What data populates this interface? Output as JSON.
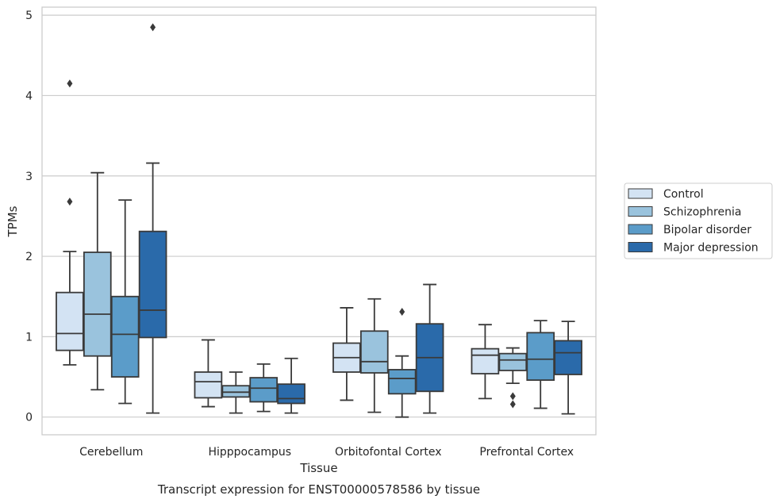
{
  "caption": "Transcript expression for ENST00000578586 by tissue",
  "chart_data": {
    "type": "box",
    "xlabel": "Tissue",
    "ylabel": "TPMs",
    "ylim": [
      -0.22,
      5.1
    ],
    "yticks": [
      "0",
      "1",
      "2",
      "3",
      "4",
      "5"
    ],
    "grid": "horizontal",
    "legend_position": "right",
    "categories": [
      "Cerebellum",
      "Hipppocampus",
      "Orbitofontal Cortex",
      "Prefrontal Cortex"
    ],
    "series": [
      {
        "name": "Control",
        "color": "#d3e3f3",
        "boxes": [
          {
            "low": 0.65,
            "q1": 0.83,
            "median": 1.04,
            "q3": 1.55,
            "high": 2.06,
            "outliers": [
              2.68,
              4.15
            ]
          },
          {
            "low": 0.13,
            "q1": 0.24,
            "median": 0.44,
            "q3": 0.56,
            "high": 0.96,
            "outliers": []
          },
          {
            "low": 0.21,
            "q1": 0.56,
            "median": 0.74,
            "q3": 0.92,
            "high": 1.36,
            "outliers": []
          },
          {
            "low": 0.23,
            "q1": 0.54,
            "median": 0.77,
            "q3": 0.85,
            "high": 1.15,
            "outliers": []
          }
        ]
      },
      {
        "name": "Schizophrenia",
        "color": "#9ac3dd",
        "boxes": [
          {
            "low": 0.34,
            "q1": 0.76,
            "median": 1.28,
            "q3": 2.05,
            "high": 3.04,
            "outliers": []
          },
          {
            "low": 0.05,
            "q1": 0.25,
            "median": 0.31,
            "q3": 0.39,
            "high": 0.56,
            "outliers": []
          },
          {
            "low": 0.06,
            "q1": 0.55,
            "median": 0.69,
            "q3": 1.07,
            "high": 1.47,
            "outliers": []
          },
          {
            "low": 0.42,
            "q1": 0.58,
            "median": 0.71,
            "q3": 0.79,
            "high": 0.86,
            "outliers": [
              0.26,
              0.16
            ]
          }
        ]
      },
      {
        "name": "Bipolar disorder",
        "color": "#5b9cc9",
        "boxes": [
          {
            "low": 0.17,
            "q1": 0.5,
            "median": 1.03,
            "q3": 1.5,
            "high": 2.7,
            "outliers": []
          },
          {
            "low": 0.07,
            "q1": 0.19,
            "median": 0.36,
            "q3": 0.49,
            "high": 0.66,
            "outliers": []
          },
          {
            "low": 0.0,
            "q1": 0.29,
            "median": 0.48,
            "q3": 0.59,
            "high": 0.76,
            "outliers": [
              1.31
            ]
          },
          {
            "low": 0.11,
            "q1": 0.46,
            "median": 0.72,
            "q3": 1.05,
            "high": 1.2,
            "outliers": []
          }
        ]
      },
      {
        "name": "Major depression",
        "color": "#2a6aaa",
        "boxes": [
          {
            "low": 0.05,
            "q1": 0.99,
            "median": 1.33,
            "q3": 2.31,
            "high": 3.16,
            "outliers": [
              4.85
            ]
          },
          {
            "low": 0.05,
            "q1": 0.17,
            "median": 0.23,
            "q3": 0.41,
            "high": 0.73,
            "outliers": []
          },
          {
            "low": 0.05,
            "q1": 0.32,
            "median": 0.74,
            "q3": 1.16,
            "high": 1.65,
            "outliers": []
          },
          {
            "low": 0.04,
            "q1": 0.53,
            "median": 0.8,
            "q3": 0.95,
            "high": 1.19,
            "outliers": []
          }
        ]
      }
    ]
  }
}
